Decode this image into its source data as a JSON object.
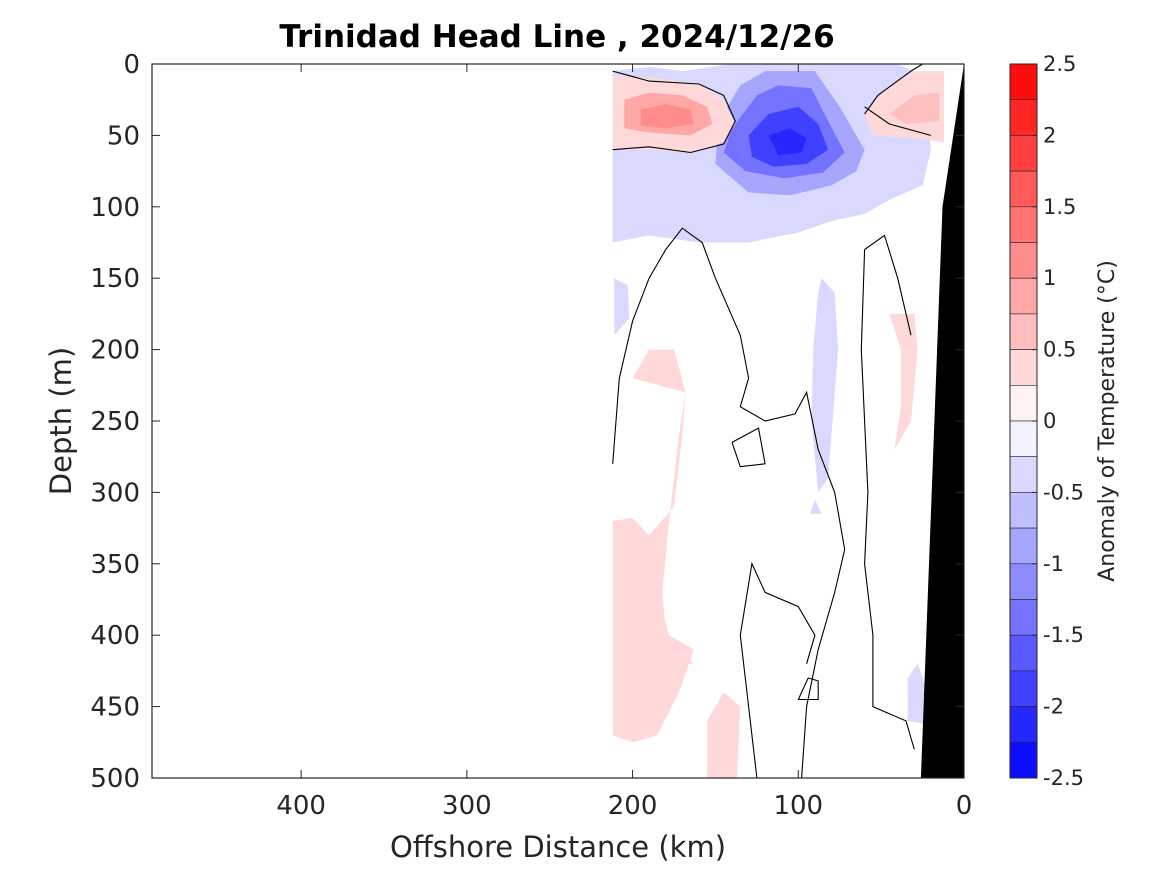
{
  "chart_data": {
    "type": "contour",
    "title": "Trinidad Head Line , 2024/12/26",
    "xlabel": "Offshore Distance (km)",
    "ylabel": "Depth (m)",
    "xlim": [
      490,
      0
    ],
    "xaxis_reversed": true,
    "xticks": [
      400,
      300,
      200,
      100,
      0
    ],
    "ylim": [
      0,
      500
    ],
    "yaxis_reversed": true,
    "yticks": [
      0,
      50,
      100,
      150,
      200,
      250,
      300,
      350,
      400,
      450,
      500
    ],
    "colorbar": {
      "label": "Anomaly of Temperature (°C)",
      "range": [
        -2.5,
        2.5
      ],
      "step": 0.25,
      "ticks": [
        2.5,
        2,
        1.5,
        1,
        0.5,
        0,
        -0.5,
        -1,
        -1.5,
        -2,
        -2.5
      ],
      "tick_labels": [
        "2.5",
        "2",
        "1.5",
        "1",
        "0.5",
        "0",
        "-0.5",
        "-1",
        "-1.5",
        "-2",
        "-2.5"
      ],
      "colormap": "blue-white-red"
    },
    "data_extent_km": [
      212,
      0
    ],
    "features": [
      {
        "kind": "warm_anomaly",
        "center_km": 180,
        "depth_m": 35,
        "peak": 1.25
      },
      {
        "kind": "cold_anomaly",
        "center_km": 105,
        "depth_m": 55,
        "peak": -2.0
      },
      {
        "kind": "warm_anomaly",
        "center_km": 20,
        "depth_m": 25,
        "peak": 0.75
      },
      {
        "kind": "warm_anomaly",
        "center_km": 175,
        "depth_m": 300,
        "peak": 0.25
      },
      {
        "kind": "cold_anomaly",
        "center_km": 160,
        "depth_m": 110,
        "peak": -0.5
      },
      {
        "kind": "warm_anomaly",
        "center_km": 40,
        "depth_m": 210,
        "peak": 0.25
      }
    ],
    "bathymetry": {
      "color": "#000000",
      "points_km_m": [
        [
          0,
          0
        ],
        [
          0,
          500
        ],
        [
          26,
          500
        ],
        [
          13,
          100
        ],
        [
          0,
          0
        ]
      ]
    },
    "grid": false
  }
}
